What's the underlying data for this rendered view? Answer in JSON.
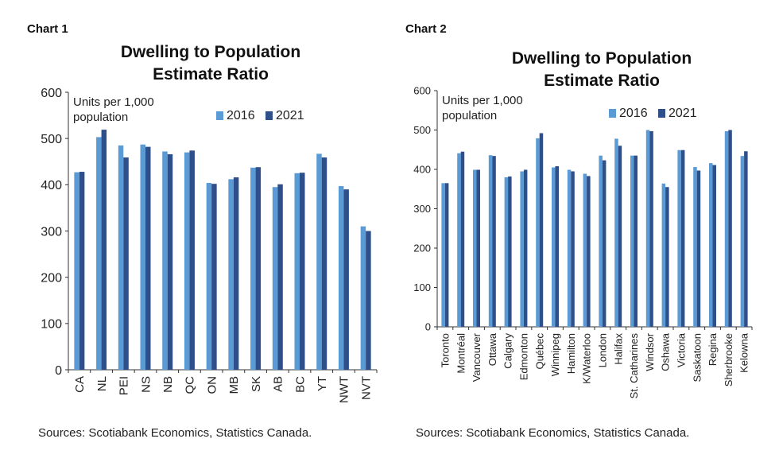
{
  "colors": {
    "series_2016": "#5b9bd5",
    "series_2021": "#2e4f8a",
    "axis": "#333333"
  },
  "chart_data": [
    {
      "type": "bar",
      "label": "Chart 1",
      "title": "Dwelling to Population\nEstimate Ratio",
      "ylabel": "Units per 1,000\npopulation",
      "ylim": [
        0,
        600
      ],
      "yticks": [
        0,
        100,
        200,
        300,
        400,
        500,
        600
      ],
      "legend": "top-right",
      "categories": [
        "CA",
        "NL",
        "PEI",
        "NS",
        "NB",
        "QC",
        "ON",
        "MB",
        "SK",
        "AB",
        "BC",
        "YT",
        "NWT",
        "NVT"
      ],
      "series": [
        {
          "name": "2016",
          "values": [
            427,
            503,
            485,
            487,
            472,
            470,
            404,
            412,
            437,
            395,
            425,
            467,
            397,
            310
          ]
        },
        {
          "name": "2021",
          "values": [
            428,
            519,
            459,
            482,
            466,
            474,
            402,
            416,
            438,
            401,
            426,
            459,
            390,
            300
          ]
        }
      ],
      "source": "Sources: Scotiabank Economics, Statistics Canada."
    },
    {
      "type": "bar",
      "label": "Chart 2",
      "title": "Dwelling to Population\nEstimate Ratio",
      "ylabel": "Units per 1,000\npopulation",
      "ylim": [
        0,
        600
      ],
      "yticks": [
        0,
        100,
        200,
        300,
        400,
        500,
        600
      ],
      "legend": "top-right",
      "categories": [
        "Toronto",
        "Montréal",
        "Vancouver",
        "Ottawa",
        "Calgary",
        "Edmonton",
        "Québec",
        "Winnipeg",
        "Hamilton",
        "K/Waterloo",
        "London",
        "Halifax",
        "St. Catharines",
        "Windsor",
        "Oshawa",
        "Victoria",
        "Saskatoon",
        "Regina",
        "Sherbrooke",
        "Kelowna"
      ],
      "series": [
        {
          "name": "2016",
          "values": [
            365,
            441,
            399,
            436,
            380,
            395,
            479,
            405,
            399,
            389,
            435,
            478,
            435,
            500,
            364,
            449,
            406,
            416,
            497,
            434
          ]
        },
        {
          "name": "2021",
          "values": [
            365,
            445,
            399,
            434,
            382,
            399,
            492,
            408,
            395,
            383,
            423,
            460,
            435,
            497,
            355,
            449,
            397,
            411,
            500,
            446
          ]
        }
      ],
      "source": "Sources: Scotiabank Economics, Statistics Canada."
    }
  ]
}
